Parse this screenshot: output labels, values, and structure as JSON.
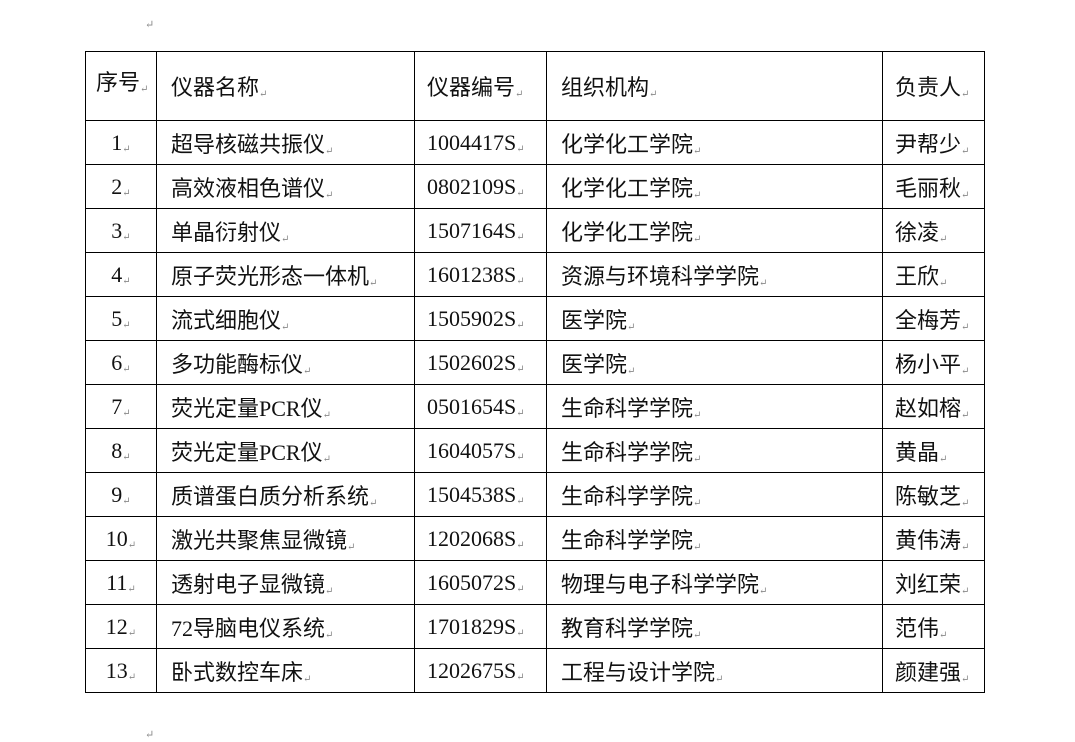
{
  "table": {
    "headers": [
      "序号",
      "仪器名称",
      "仪器编号",
      "组织机构",
      "负责人"
    ],
    "rows": [
      [
        "1",
        "超导核磁共振仪",
        "1004417S",
        "化学化工学院",
        "尹帮少"
      ],
      [
        "2",
        "高效液相色谱仪",
        "0802109S",
        "化学化工学院",
        "毛丽秋"
      ],
      [
        "3",
        "单晶衍射仪",
        "1507164S",
        "化学化工学院",
        "徐凌"
      ],
      [
        "4",
        "原子荧光形态一体机",
        "1601238S",
        "资源与环境科学学院",
        "王欣"
      ],
      [
        "5",
        "流式细胞仪",
        "1505902S",
        "医学院",
        "全梅芳"
      ],
      [
        "6",
        "多功能酶标仪",
        "1502602S",
        "医学院",
        "杨小平"
      ],
      [
        "7",
        "荧光定量PCR仪",
        "0501654S",
        "生命科学学院",
        "赵如榕"
      ],
      [
        "8",
        "荧光定量PCR仪",
        "1604057S",
        "生命科学学院",
        "黄晶"
      ],
      [
        "9",
        "质谱蛋白质分析系统",
        "1504538S",
        "生命科学学院",
        "陈敏芝"
      ],
      [
        "10",
        "激光共聚焦显微镜",
        "1202068S",
        "生命科学学院",
        "黄伟涛"
      ],
      [
        "11",
        "透射电子显微镜",
        "1605072S",
        "物理与电子科学学院",
        "刘红荣"
      ],
      [
        "12",
        "72导脑电仪系统",
        "1701829S",
        "教育科学学院",
        "范伟"
      ],
      [
        "13",
        "卧式数控车床",
        "1202675S",
        "工程与设计学院",
        "颜建强"
      ]
    ]
  }
}
